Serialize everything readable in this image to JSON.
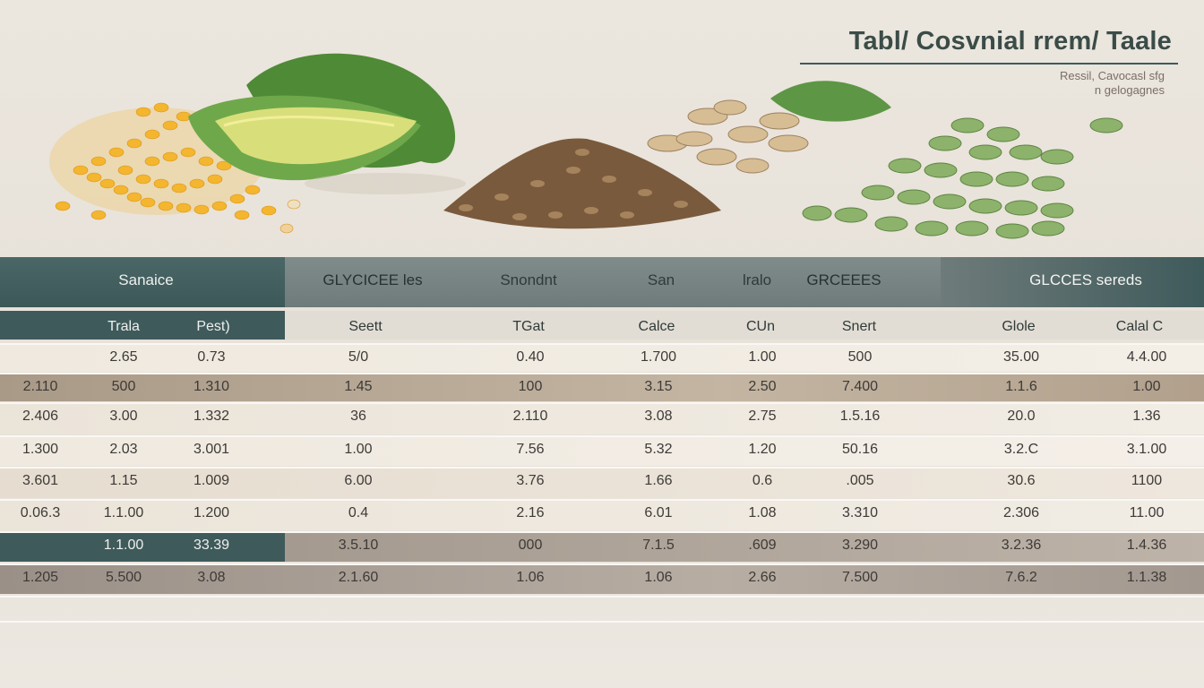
{
  "title": "Tabl/ Cosvnial rrem/ Taale",
  "subtitle": {
    "line1": "Ressil, Cavocasl sfg",
    "line2": "n gelogagnes"
  },
  "illustration": {
    "items": [
      "corn-kernels",
      "avocado-leaf",
      "flaxseed-pile",
      "sunflower-seeds",
      "pumpkin-seeds"
    ],
    "colors": {
      "corn": "#f2b32e",
      "avocado": "#6e9a3c",
      "flax": "#8a6a48",
      "sunflower": "#c9ab83",
      "pumpkin": "#7ea15c"
    }
  },
  "colors": {
    "header_dark": "#3f5a5b",
    "header_gray": "#7b8988",
    "row_light": "#f1ece3",
    "row_tan": "#b5a591",
    "row_beige": "#e3dacd",
    "row_gray": "#948b82"
  },
  "header1": [
    "Sanaice",
    "GLYCICEE les",
    "Snondnt",
    "San",
    "lralo",
    "GRCEEES",
    "GLCCES sereds"
  ],
  "header2": [
    "Trala",
    "Pest)",
    "Seett",
    "TGat",
    "Calce",
    "CUn",
    "Snert",
    "Glole",
    "Calal C"
  ],
  "rows": [
    [
      "",
      "2.65",
      "0.73",
      "5/0",
      "0.40",
      "1.700",
      "1.00",
      "500",
      "35.00",
      "4.4.00"
    ],
    [
      "2.110",
      "500",
      "1.310",
      "1.45",
      "100",
      "3.15",
      "2.50",
      "7.400",
      "1.1.6",
      "1.00"
    ],
    [
      "2.406",
      "3.00",
      "1.332",
      "36",
      "2.110",
      "3.08",
      "2.75",
      "1.5.16",
      "20.0",
      "1.36"
    ],
    [
      "1.300",
      "2.03",
      "3.001",
      "1.00",
      "7.56",
      "5.32",
      "1.20",
      "50.16",
      "3.2.C",
      "3.1.00"
    ],
    [
      "3.601",
      "1.15",
      "1.009",
      "6.00",
      "3.76",
      "1.66",
      "0.6",
      ".005",
      "30.6",
      "1100"
    ],
    [
      "0.06.3",
      "1.1.00",
      "1.200",
      "0.4",
      "2.16",
      "6.01",
      "1.08",
      "3.310",
      "2.306",
      "11.00"
    ],
    [
      "",
      "1.1.00",
      "33.39",
      "3.5.10",
      "000",
      "7.1.5",
      ".609",
      "3.290",
      "3.2.36",
      "1.4.36"
    ],
    [
      "1.205",
      "5.500",
      "3.08",
      "2.1.60",
      "1.06",
      "1.06",
      "2.66",
      "7.500",
      "7.6.2",
      "1.1.38"
    ]
  ]
}
